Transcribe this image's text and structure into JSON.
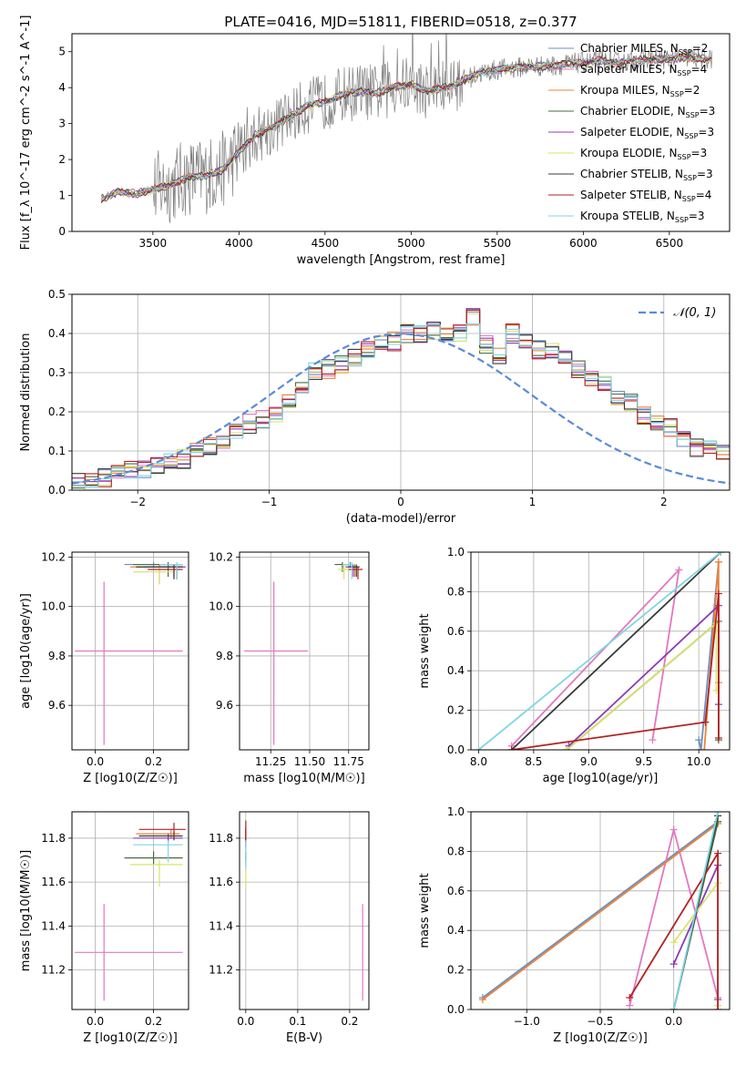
{
  "figure": {
    "title": "PLATE=0416, MJD=51811, FIBERID=0518, z=0.377"
  },
  "chart_data": [
    {
      "id": "spectrum",
      "type": "line",
      "xlabel": "wavelength [Angstrom, rest frame]",
      "ylabel": "Flux [f_λ 10^-17 erg cm^-2 s^-1 A^-1]",
      "xlim": [
        3030,
        6850
      ],
      "ylim": [
        0,
        5.5
      ],
      "xticks": [
        3500,
        4000,
        4500,
        5000,
        5500,
        6000,
        6500
      ],
      "yticks": [
        0,
        1,
        2,
        3,
        4,
        5
      ],
      "grid": false,
      "legend_position": "right",
      "data": {
        "x_start": 3200,
        "x_end": 6750,
        "anchor_x": [
          3200,
          3300,
          3400,
          3500,
          3600,
          3700,
          3800,
          3900,
          4000,
          4100,
          4200,
          4300,
          4400,
          4500,
          4600,
          4700,
          4800,
          4900,
          5000,
          5100,
          5200,
          5300,
          5400,
          5500,
          5600,
          5700,
          5800,
          5900,
          6000,
          6100,
          6200,
          6300,
          6400,
          6500,
          6600,
          6700,
          6750
        ],
        "anchor_y": [
          0.9,
          1.1,
          1.05,
          1.15,
          1.3,
          1.5,
          1.55,
          1.7,
          2.2,
          2.7,
          2.9,
          3.2,
          3.5,
          3.6,
          3.8,
          3.9,
          3.85,
          4.0,
          4.1,
          3.9,
          4.0,
          4.2,
          4.4,
          4.5,
          4.55,
          4.6,
          4.6,
          4.65,
          4.7,
          4.75,
          4.7,
          4.75,
          4.8,
          4.8,
          4.85,
          4.8,
          4.8
        ]
      },
      "series": [
        {
          "name": "Chabrier MILES, N_SSP=2",
          "color": "#6c8ebf"
        },
        {
          "name": "Salpeter MILES, N_SSP=4",
          "color": "#e377c2"
        },
        {
          "name": "Kroupa MILES, N_SSP=2",
          "color": "#e8843c"
        },
        {
          "name": "Chabrier ELODIE, N_SSP=3",
          "color": "#4a6b3f"
        },
        {
          "name": "Salpeter ELODIE, N_SSP=3",
          "color": "#8e3bb5"
        },
        {
          "name": "Kroupa ELODIE, N_SSP=3",
          "color": "#d8e36b"
        },
        {
          "name": "Chabrier STELIB, N_SSP=3",
          "color": "#3a3a3a"
        },
        {
          "name": "Salpeter STELIB, N_SSP=4",
          "color": "#b22222"
        },
        {
          "name": "Kroupa STELIB, N_SSP=3",
          "color": "#7fd6e2"
        }
      ]
    },
    {
      "id": "residuals",
      "type": "line",
      "xlabel": "(data-model)/error",
      "ylabel": "Normed distribution",
      "xlim": [
        -2.5,
        2.5
      ],
      "ylim": [
        0,
        0.5
      ],
      "xticks": [
        -2,
        -1,
        0,
        1,
        2
      ],
      "yticks": [
        0.0,
        0.1,
        0.2,
        0.3,
        0.4,
        0.5
      ],
      "grid": true,
      "legend": "𝒩(0, 1)",
      "legend_position": "top-right",
      "hist_edges_start": -2.5,
      "hist_bin": 0.1,
      "hist_base": [
        0.02,
        0.03,
        0.03,
        0.04,
        0.05,
        0.05,
        0.06,
        0.07,
        0.08,
        0.1,
        0.11,
        0.13,
        0.15,
        0.17,
        0.18,
        0.19,
        0.23,
        0.26,
        0.3,
        0.31,
        0.32,
        0.34,
        0.36,
        0.37,
        0.38,
        0.4,
        0.4,
        0.41,
        0.39,
        0.4,
        0.44,
        0.37,
        0.34,
        0.4,
        0.38,
        0.36,
        0.35,
        0.34,
        0.31,
        0.29,
        0.27,
        0.24,
        0.22,
        0.19,
        0.17,
        0.16,
        0.13,
        0.11,
        0.1,
        0.09
      ]
    },
    {
      "id": "age_vs_Z",
      "type": "scatter",
      "xlabel": "Z [log10(Z/Z☉)]",
      "ylabel": "age  [log10(age/yr)]",
      "xlim": [
        -0.08,
        0.32
      ],
      "ylim": [
        9.42,
        10.22
      ],
      "xticks": [
        0.0,
        0.2
      ],
      "yticks": [
        9.6,
        9.8,
        10.0,
        10.2
      ],
      "grid": true
    },
    {
      "id": "age_vs_mass",
      "type": "scatter",
      "xlabel": "mass [log10(M/M☉)]",
      "ylabel": "",
      "xlim": [
        11.05,
        11.88
      ],
      "ylim": [
        9.42,
        10.22
      ],
      "xticks": [
        11.25,
        11.5,
        11.75
      ],
      "xticklabels": [
        "11.25",
        "11.50",
        "11.75"
      ],
      "yticks": [
        9.6,
        9.8,
        10.0,
        10.2
      ],
      "grid": true
    },
    {
      "id": "massweight_vs_age",
      "type": "line",
      "xlabel": "age  [log10(age/yr)]",
      "ylabel": "mass weight",
      "xlim": [
        7.93,
        10.28
      ],
      "ylim": [
        0.0,
        1.0
      ],
      "xticks": [
        8.0,
        8.5,
        9.0,
        9.5,
        10.0
      ],
      "yticks": [
        0.0,
        0.2,
        0.4,
        0.6,
        0.8,
        1.0
      ],
      "grid": true
    },
    {
      "id": "mass_vs_Z",
      "type": "scatter",
      "xlabel": "Z [log10(Z/Z☉)]",
      "ylabel": "mass [log10(M/M☉)]",
      "xlim": [
        -0.08,
        0.32
      ],
      "ylim": [
        11.02,
        11.92
      ],
      "xticks": [
        0.0,
        0.2
      ],
      "yticks": [
        11.2,
        11.4,
        11.6,
        11.8
      ],
      "grid": true
    },
    {
      "id": "mass_vs_ebv",
      "type": "scatter",
      "xlabel": "E(B-V)",
      "ylabel": "",
      "xlim": [
        -0.012,
        0.237
      ],
      "ylim": [
        11.02,
        11.92
      ],
      "xticks": [
        0.0,
        0.1,
        0.2
      ],
      "yticks": [
        11.2,
        11.4,
        11.6,
        11.8
      ],
      "grid": true
    },
    {
      "id": "massweight_vs_Z",
      "type": "line",
      "xlabel": "Z [log10(Z/Z☉)]",
      "ylabel": "mass weight",
      "xlim": [
        -1.38,
        0.38
      ],
      "ylim": [
        0.0,
        1.0
      ],
      "xticks": [
        -1.0,
        -0.5,
        0.0
      ],
      "yticks": [
        0.0,
        0.2,
        0.4,
        0.6,
        0.8,
        1.0
      ],
      "grid": true
    }
  ]
}
